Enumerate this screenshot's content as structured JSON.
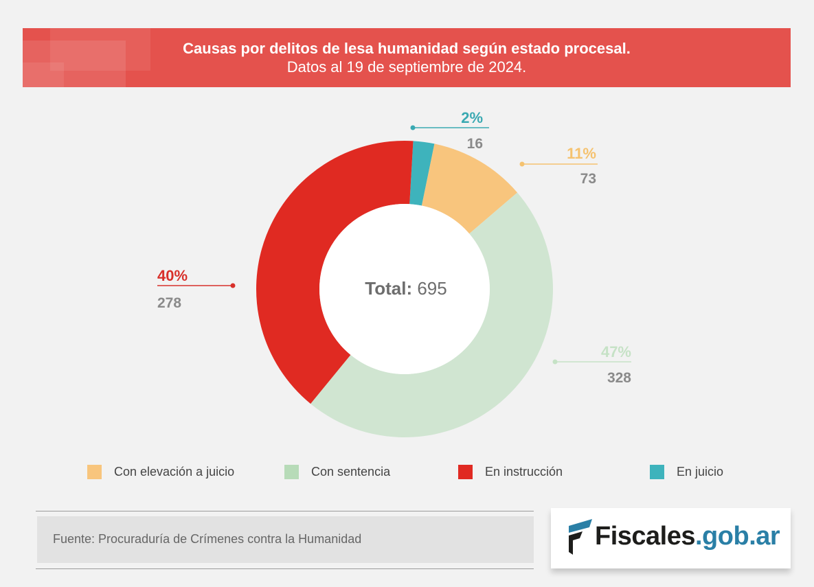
{
  "header": {
    "title": "Causas por delitos de lesa humanidad según estado procesal.",
    "subtitle": "Datos al 19 de septiembre de 2024."
  },
  "chart_data": {
    "type": "pie",
    "title": "Causas por delitos de lesa humanidad según estado procesal.",
    "subtitle": "Datos al 19 de septiembre de 2024.",
    "total_label": "Total:",
    "total_value": "695",
    "legend_position": "bottom",
    "slices": [
      {
        "name": "En juicio",
        "value": 16,
        "percent_label": "2%",
        "value_label": "16",
        "color": "#3eb3bc",
        "label_color": "#3aa9b2"
      },
      {
        "name": "Con elevación a juicio",
        "value": 73,
        "percent_label": "11%",
        "value_label": "73",
        "color": "#f8c57d",
        "label_color": "#f5c26f"
      },
      {
        "name": "Con sentencia",
        "value": 328,
        "percent_label": "47%",
        "value_label": "328",
        "color": "#d0e5d1",
        "label_color": "#c6e2c6"
      },
      {
        "name": "En instrucción",
        "value": 278,
        "percent_label": "40%",
        "value_label": "278",
        "color": "#e02a22",
        "label_color": "#d8302a"
      }
    ]
  },
  "legend": {
    "items": [
      {
        "label": "Con elevación a juicio",
        "color": "#f8c57d"
      },
      {
        "label": "Con sentencia",
        "color": "#b7dbb8"
      },
      {
        "label": "En instrucción",
        "color": "#e02a22"
      },
      {
        "label": "En juicio",
        "color": "#3eb3bc"
      }
    ]
  },
  "source": {
    "text": "Fuente: Procuraduría de Crímenes contra la Humanidad"
  },
  "logo": {
    "part1": "Fiscales",
    "part2": ".gob.ar",
    "mark_icon": "fiscales-flag-icon"
  }
}
